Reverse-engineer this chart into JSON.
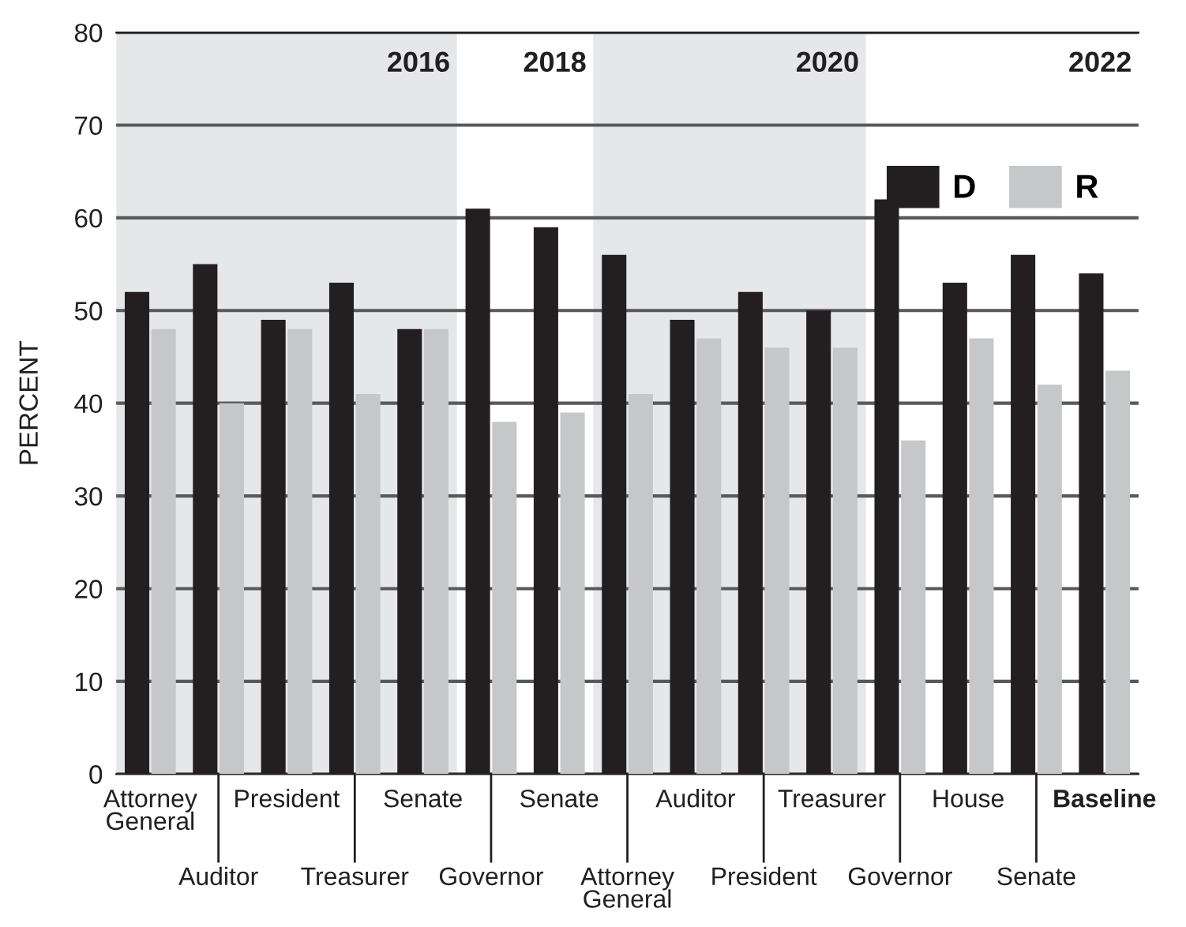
{
  "chart_data": {
    "type": "bar",
    "ylabel": "PERCENT",
    "categories": [
      "Attorney General",
      "Auditor",
      "President",
      "Treasurer",
      "Senate",
      "Governor",
      "Senate",
      "Attorney General",
      "Auditor",
      "President",
      "Treasurer",
      "Governor",
      "House",
      "Senate",
      "Baseline"
    ],
    "series": [
      {
        "name": "D",
        "color": "#231f20",
        "values": [
          52,
          55,
          49,
          53,
          48,
          61,
          59,
          56,
          49,
          52,
          50,
          62,
          53,
          56,
          54
        ]
      },
      {
        "name": "R",
        "color": "#c6c7c9",
        "values": [
          48,
          40,
          48,
          41,
          48,
          38,
          39,
          41,
          47,
          46,
          46,
          36,
          47,
          42,
          43.5
        ]
      }
    ],
    "ylim": [
      0,
      80
    ],
    "yticks": [
      0,
      10,
      20,
      30,
      40,
      50,
      60,
      70,
      80
    ],
    "grid": "y",
    "legend": "top right",
    "annotations": [
      "2016",
      "2018",
      "2020",
      "2022"
    ]
  }
}
